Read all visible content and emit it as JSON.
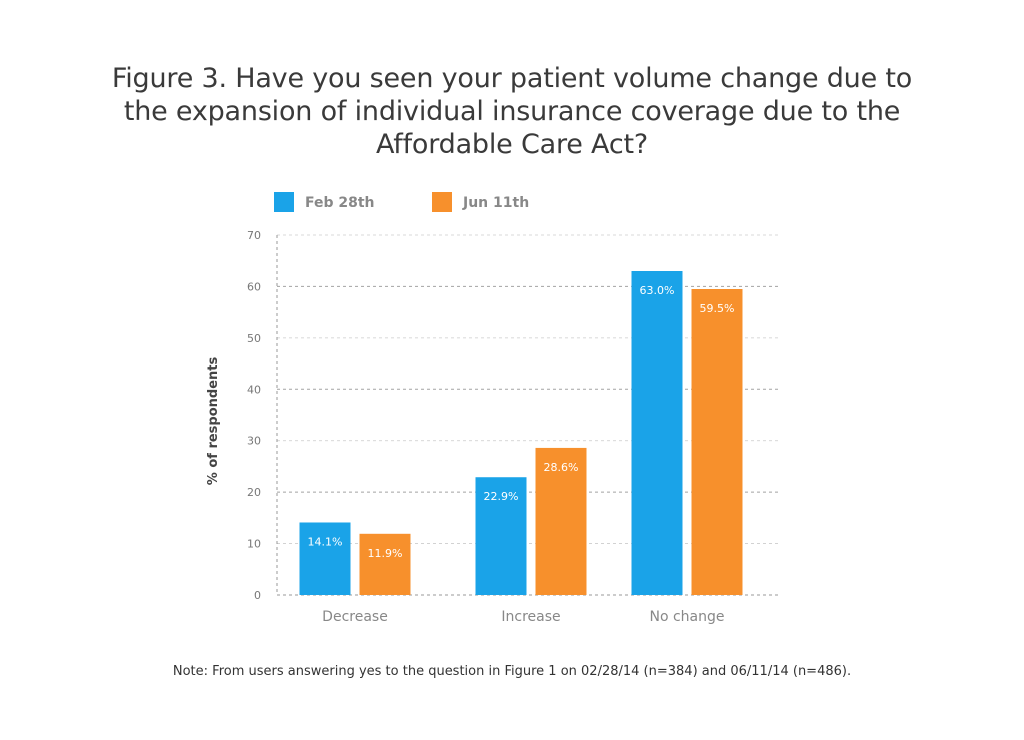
{
  "title_lines": [
    "Figure 3. Have you seen your patient volume change due to",
    "the expansion of individual insurance coverage due to the",
    "Affordable Care Act?"
  ],
  "note": "Note: From users answering yes to the question in Figure 1 on 02/28/14 (n=384) and 06/11/14 (n=486).",
  "colors": {
    "series_1": "#1aa3e8",
    "series_2": "#f7902c",
    "grid": "#999999",
    "tick_text": "#777777",
    "label_text": "#888888"
  },
  "chart_data": {
    "type": "bar",
    "title": "Figure 3. Have you seen your patient volume change due to the expansion of individual insurance coverage due to the Affordable Care Act?",
    "categories": [
      "Decrease",
      "Increase",
      "No change"
    ],
    "series": [
      {
        "name": "Feb 28th",
        "values": [
          14.1,
          22.9,
          63.0
        ],
        "labels": [
          "14.1%",
          "22.9%",
          "63.0%"
        ]
      },
      {
        "name": "Jun 11th",
        "values": [
          11.9,
          28.6,
          59.5
        ],
        "labels": [
          "11.9%",
          "28.6%",
          "59.5%"
        ]
      }
    ],
    "xlabel": "",
    "ylabel": "% of respondents",
    "ylim": [
      0,
      70
    ],
    "yticks": [
      0,
      10,
      20,
      30,
      40,
      50,
      60,
      70
    ],
    "grid": true,
    "legend_position": "top-left"
  }
}
